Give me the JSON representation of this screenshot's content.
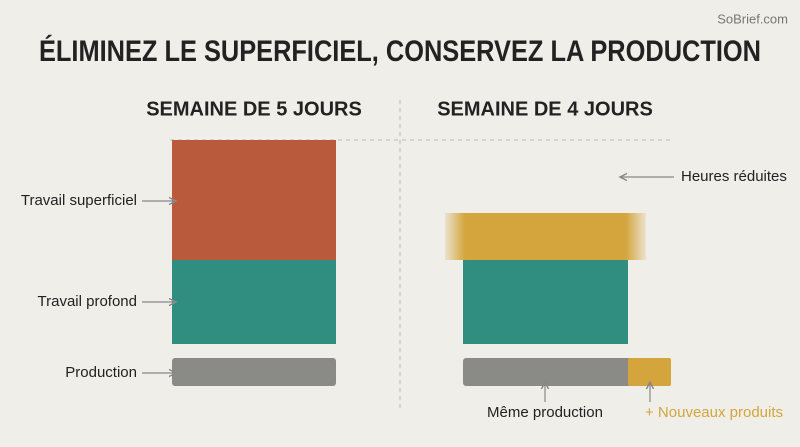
{
  "watermark": "SoBrief.com",
  "title": "ÉLIMINEZ LE SUPERFICIEL, CONSERVEZ LA PRODUCTION",
  "left": {
    "heading": "SEMAINE DE 5 JOURS",
    "labels": [
      "Travail superficiel",
      "Travail profond",
      "Production"
    ]
  },
  "right": {
    "heading": "SEMAINE DE 4 JOURS",
    "labels": [
      "Heures réduites",
      "Même production",
      "+ Nouveaux produits"
    ]
  }
}
